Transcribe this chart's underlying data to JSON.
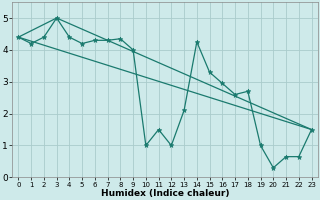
{
  "xlabel": "Humidex (Indice chaleur)",
  "bg_color": "#ceeaea",
  "grid_color": "#aacccc",
  "line_color": "#1a7a6e",
  "xlim": [
    -0.5,
    23.5
  ],
  "ylim": [
    0,
    5.5
  ],
  "yticks": [
    0,
    1,
    2,
    3,
    4,
    5
  ],
  "xticks": [
    0,
    1,
    2,
    3,
    4,
    5,
    6,
    7,
    8,
    9,
    10,
    11,
    12,
    13,
    14,
    15,
    16,
    17,
    18,
    19,
    20,
    21,
    22,
    23
  ],
  "line1_x": [
    0,
    1,
    2,
    3,
    4,
    5,
    6,
    7,
    8,
    9,
    10,
    11,
    12,
    13,
    14,
    15,
    16,
    17,
    18,
    19,
    20,
    21,
    22,
    23
  ],
  "line1_y": [
    4.4,
    4.2,
    4.4,
    5.0,
    4.4,
    4.2,
    4.3,
    4.3,
    4.35,
    4.0,
    1.0,
    1.5,
    1.0,
    2.1,
    4.25,
    3.3,
    2.95,
    2.6,
    2.7,
    1.0,
    0.3,
    0.65,
    0.65,
    1.5
  ],
  "line2_x": [
    0,
    23
  ],
  "line2_y": [
    4.4,
    1.5
  ],
  "line3_x": [
    0,
    3,
    23
  ],
  "line3_y": [
    4.4,
    5.0,
    1.5
  ]
}
